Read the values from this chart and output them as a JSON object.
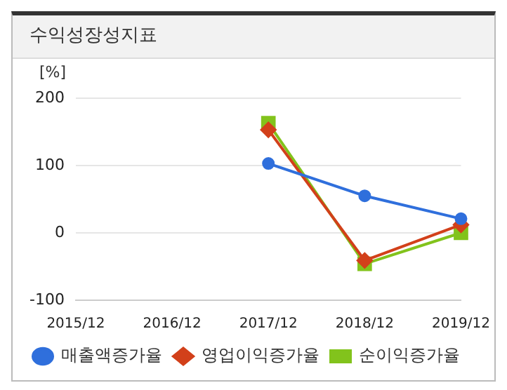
{
  "chart_data": {
    "type": "line",
    "title": "수익성장성지표",
    "ylabel": "[%]",
    "categories": [
      "2015/12",
      "2016/12",
      "2017/12",
      "2018/12",
      "2019/12"
    ],
    "series": [
      {
        "name": "매출액증가율",
        "color": "#2f6fdc",
        "marker": "circle",
        "values": [
          null,
          null,
          103,
          55,
          21
        ]
      },
      {
        "name": "영업이익증가율",
        "color": "#d2401a",
        "marker": "diamond",
        "values": [
          null,
          null,
          153,
          -41,
          12
        ]
      },
      {
        "name": "순이익증가율",
        "color": "#82c31c",
        "marker": "square",
        "values": [
          null,
          null,
          163,
          -46,
          0
        ]
      }
    ],
    "ylim": [
      -100,
      200
    ],
    "yticks": [
      -100,
      0,
      100,
      200
    ],
    "grid": "y",
    "legend": "bottom"
  }
}
